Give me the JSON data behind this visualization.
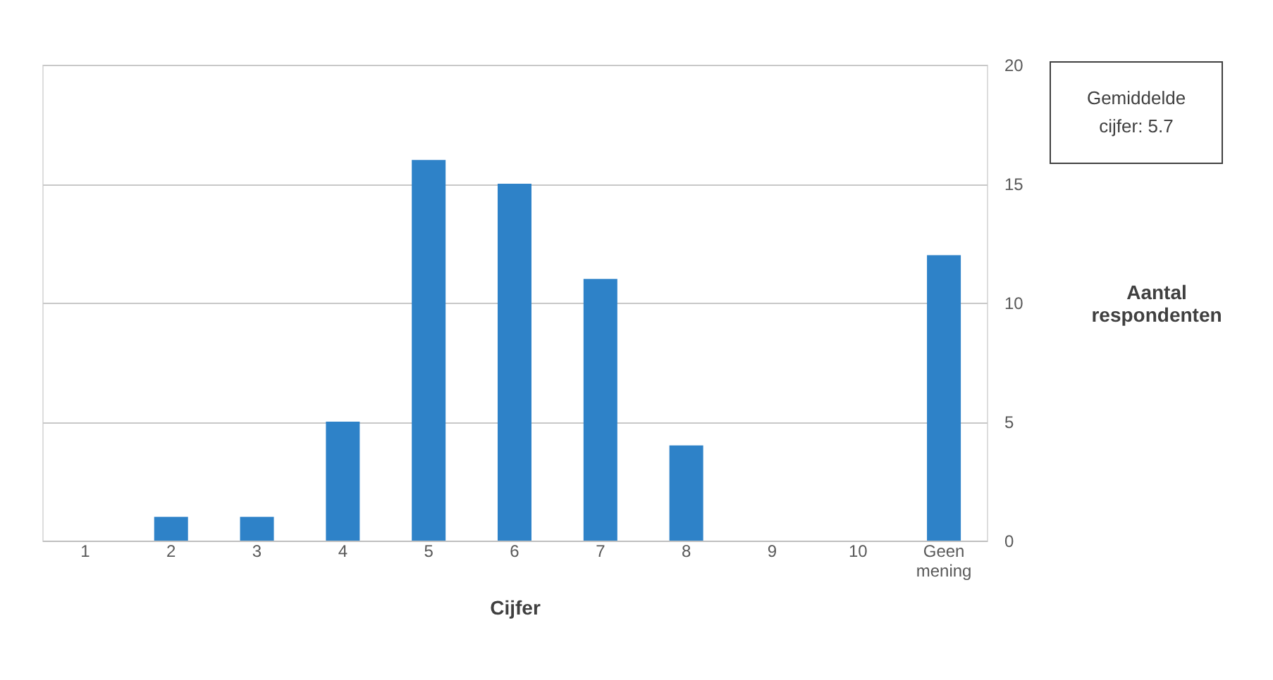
{
  "chart_data": {
    "type": "bar",
    "xlabel": "Cijfer",
    "ylabel": "Aantal respondenten",
    "categories": [
      "1",
      "2",
      "3",
      "4",
      "5",
      "6",
      "7",
      "8",
      "9",
      "10",
      "Geen mening"
    ],
    "values": [
      0,
      1,
      1,
      5,
      16,
      15,
      11,
      4,
      0,
      0,
      12
    ],
    "color": "#2e82c8",
    "ylim": [
      0,
      20
    ],
    "yticks": [
      0,
      5,
      10,
      15,
      20
    ],
    "grid": "y",
    "annotations": [
      "Gemiddelde cijfer: 5.7"
    ]
  }
}
